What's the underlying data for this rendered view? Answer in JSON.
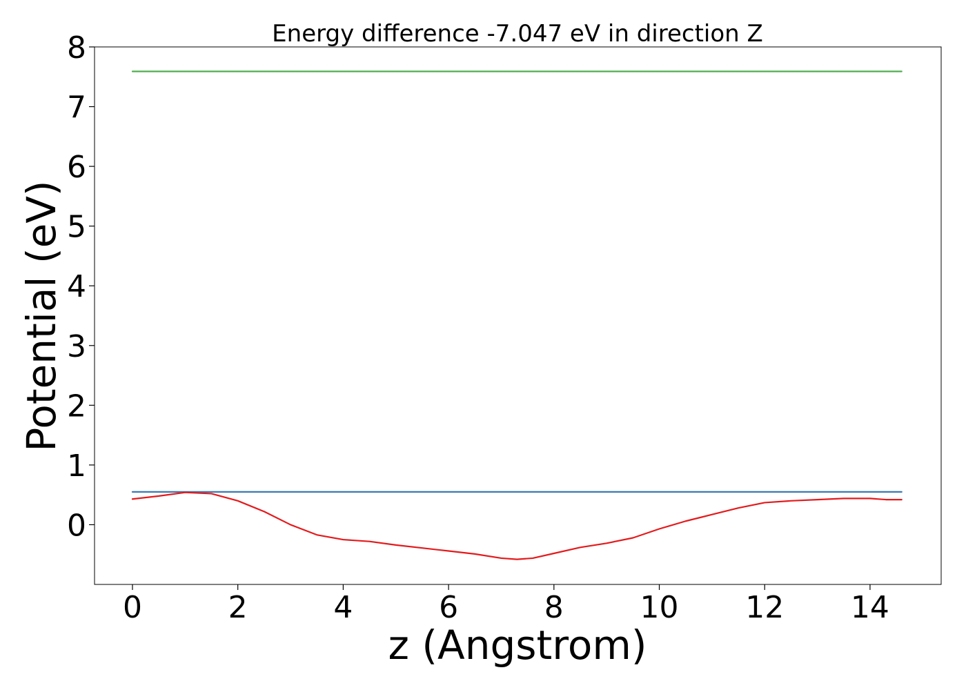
{
  "chart_data": {
    "type": "line",
    "title": "Energy difference -7.047 eV in direction Z",
    "xlabel": "z (Angstrom)",
    "ylabel": "Potential (eV)",
    "xlim": [
      -0.72,
      15.35
    ],
    "ylim": [
      -1.0,
      8.0
    ],
    "xticks": [
      {
        "value": 0,
        "label": "0"
      },
      {
        "value": 2,
        "label": "2"
      },
      {
        "value": 4,
        "label": "4"
      },
      {
        "value": 6,
        "label": "6"
      },
      {
        "value": 8,
        "label": "8"
      },
      {
        "value": 10,
        "label": "10"
      },
      {
        "value": 12,
        "label": "12"
      },
      {
        "value": 14,
        "label": "14"
      }
    ],
    "yticks": [
      {
        "value": 0,
        "label": "0"
      },
      {
        "value": 1,
        "label": "1"
      },
      {
        "value": 2,
        "label": "2"
      },
      {
        "value": 3,
        "label": "3"
      },
      {
        "value": 4,
        "label": "4"
      },
      {
        "value": 5,
        "label": "5"
      },
      {
        "value": 6,
        "label": "6"
      },
      {
        "value": 7,
        "label": "7"
      },
      {
        "value": 8,
        "label": "8"
      }
    ],
    "grid": false,
    "legend": "none",
    "series": [
      {
        "color": "#4cae4c",
        "x": [
          0,
          14.6
        ],
        "y": [
          7.59,
          7.59
        ]
      },
      {
        "color": "#3a79b3",
        "x": [
          0,
          14.6
        ],
        "y": [
          0.55,
          0.55
        ]
      },
      {
        "color": "#e41a1c",
        "x": [
          0,
          0.5,
          1.0,
          1.5,
          2.0,
          2.5,
          3.0,
          3.5,
          4.0,
          4.5,
          5.0,
          5.5,
          6.0,
          6.5,
          7.0,
          7.3,
          7.6,
          8.0,
          8.5,
          9.0,
          9.5,
          10.0,
          10.5,
          11.0,
          11.5,
          12.0,
          12.5,
          13.0,
          13.5,
          14.0,
          14.3,
          14.6
        ],
        "y": [
          0.43,
          0.48,
          0.54,
          0.52,
          0.4,
          0.22,
          0.0,
          -0.17,
          -0.25,
          -0.28,
          -0.34,
          -0.39,
          -0.44,
          -0.49,
          -0.56,
          -0.58,
          -0.56,
          -0.48,
          -0.38,
          -0.31,
          -0.22,
          -0.07,
          0.06,
          0.17,
          0.28,
          0.37,
          0.4,
          0.42,
          0.44,
          0.44,
          0.42,
          0.42
        ]
      }
    ]
  }
}
